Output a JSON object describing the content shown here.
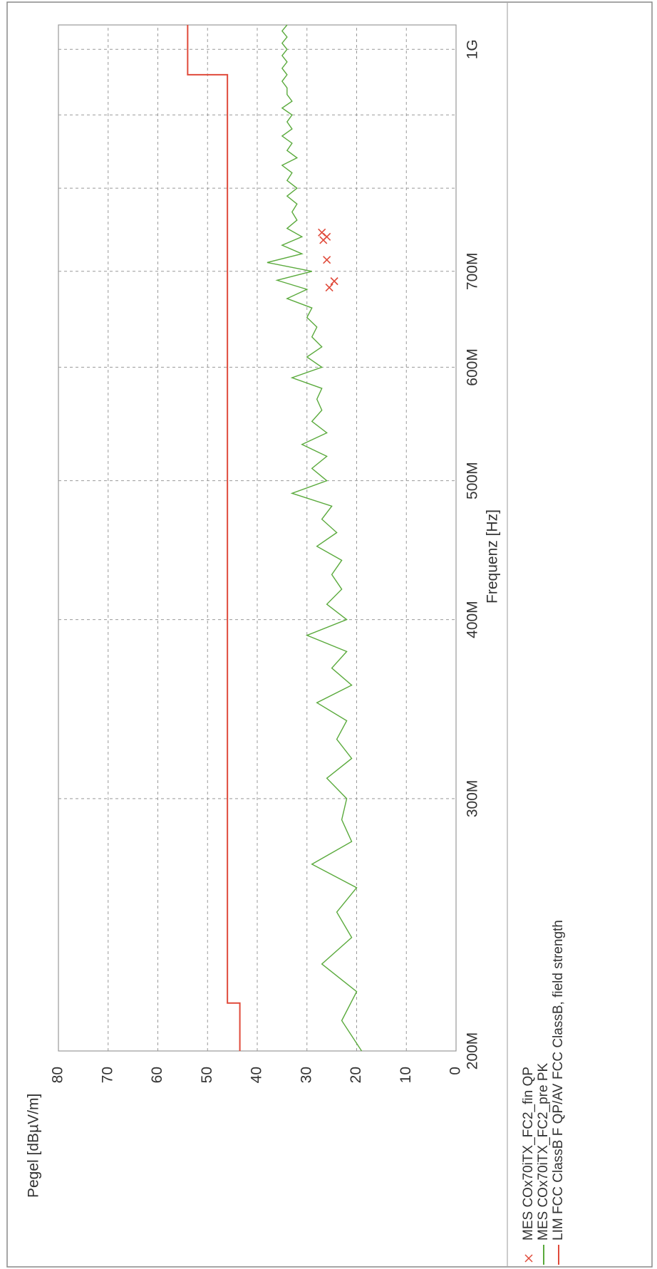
{
  "chart_data": {
    "type": "line",
    "y_label": "Pegel [dBµV/m]",
    "x_label": "Frequenz [Hz]",
    "xscale": "log",
    "grid": true,
    "xlim": [
      200000000,
      1040000000
    ],
    "ylim": [
      0,
      80
    ],
    "xticks": [
      {
        "value": 200000000,
        "label": "200M"
      },
      {
        "value": 300000000,
        "label": "300M"
      },
      {
        "value": 400000000,
        "label": "400M"
      },
      {
        "value": 500000000,
        "label": "500M"
      },
      {
        "value": 600000000,
        "label": "600M"
      },
      {
        "value": 700000000,
        "label": "700M"
      },
      {
        "value": 800000000,
        "label": null
      },
      {
        "value": 900000000,
        "label": null
      },
      {
        "value": 1000000000,
        "label": "1G"
      }
    ],
    "yticks": [
      0,
      10,
      20,
      30,
      40,
      50,
      60,
      70,
      80
    ],
    "series": [
      {
        "name": "MES  COx70iTX_FC2_fin QP",
        "color": "#e04a3a",
        "mode": "markers",
        "x": [
          682000000,
          689000000,
          713000000,
          736000000,
          740000000,
          745000000
        ],
        "values": [
          25.5,
          24.5,
          26,
          26.7,
          26,
          27
        ]
      },
      {
        "name": "MES  COx70iTX_FC2_pre PK",
        "color": "#5aaa3c",
        "mode": "line",
        "x": [
          200000000,
          210000000,
          220000000,
          230000000,
          240000000,
          250000000,
          260000000,
          270000000,
          280000000,
          290000000,
          300000000,
          310000000,
          320000000,
          330000000,
          340000000,
          350000000,
          360000000,
          370000000,
          380000000,
          390000000,
          400000000,
          410000000,
          420000000,
          430000000,
          440000000,
          450000000,
          460000000,
          470000000,
          480000000,
          490000000,
          500000000,
          510000000,
          520000000,
          530000000,
          540000000,
          550000000,
          560000000,
          570000000,
          580000000,
          590000000,
          600000000,
          610000000,
          620000000,
          630000000,
          640000000,
          650000000,
          660000000,
          670000000,
          680000000,
          690000000,
          700000000,
          710000000,
          720000000,
          730000000,
          740000000,
          750000000,
          760000000,
          770000000,
          780000000,
          790000000,
          800000000,
          810000000,
          820000000,
          830000000,
          840000000,
          850000000,
          860000000,
          870000000,
          880000000,
          890000000,
          900000000,
          910000000,
          920000000,
          930000000,
          940000000,
          950000000,
          960000000,
          970000000,
          980000000,
          990000000,
          1000000000,
          1010000000,
          1020000000,
          1030000000,
          1040000000
        ],
        "values": [
          19,
          23,
          20,
          27,
          21,
          24,
          20,
          29,
          21,
          23,
          22,
          26,
          21,
          24,
          22,
          28,
          21,
          25,
          22,
          30,
          22,
          26,
          23,
          25,
          23,
          28,
          24,
          27,
          25,
          33,
          26,
          29,
          26,
          31,
          26,
          29,
          27,
          28,
          27,
          33,
          27,
          30,
          27,
          29,
          28,
          30,
          29,
          34,
          30,
          36,
          29,
          38,
          31,
          35,
          31,
          34,
          32,
          33,
          32,
          34,
          32,
          34,
          33,
          35,
          32,
          34,
          33,
          35,
          33,
          34,
          33,
          35,
          33,
          34,
          34,
          35,
          34,
          35,
          34,
          35,
          34,
          35,
          34,
          35,
          34
        ]
      },
      {
        "name": "LIM  FCC ClassB F QP/AV",
        "description": "FCC ClassB, field strength",
        "color": "#e04a3a",
        "mode": "line",
        "x": [
          200000000,
          216000000,
          216000000,
          960000000,
          960000000,
          1040000000
        ],
        "values": [
          43.5,
          43.5,
          46,
          46,
          54,
          54
        ]
      }
    ]
  }
}
